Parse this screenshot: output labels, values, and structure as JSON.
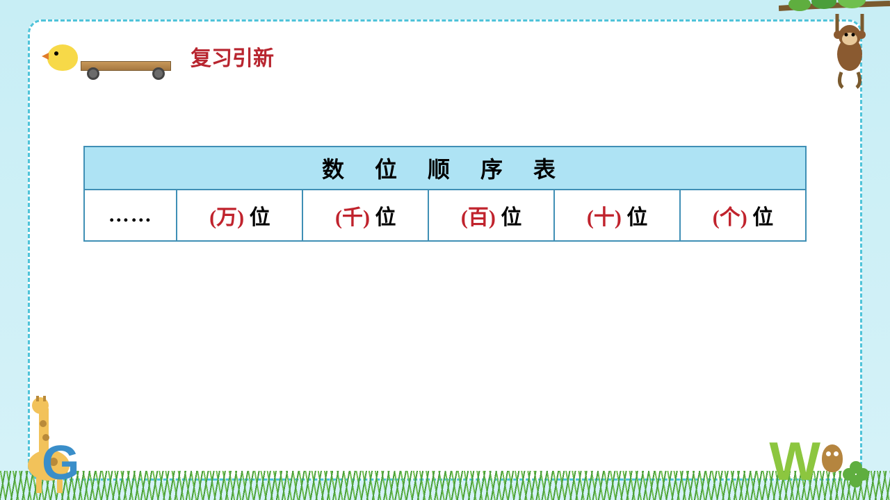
{
  "title": "复习引新",
  "table": {
    "header": "数 位 顺 序 表",
    "columns": [
      {
        "prefix": "",
        "red": "",
        "suffix": "……",
        "ellipsis": true
      },
      {
        "prefix": "(",
        "red": "万",
        "suffix": ") 位"
      },
      {
        "prefix": "(",
        "red": "千",
        "suffix": ") 位"
      },
      {
        "prefix": "(",
        "red": "百",
        "suffix": ") 位"
      },
      {
        "prefix": "(",
        "red": "十",
        "suffix": ") 位"
      },
      {
        "prefix": "(",
        "red": "个",
        "suffix": ") 位"
      }
    ],
    "border_color": "#3f8fb5",
    "header_bg": "#aee3f4",
    "header_fontsize": 32,
    "cell_fontsize": 30,
    "red_color": "#c0232d"
  },
  "frame": {
    "outer_bg": "#c8eef5",
    "inner_bg": "#ffffff",
    "dash_color": "#4fc3d9"
  },
  "decorations": {
    "top_left": "chick-on-cart",
    "top_right": "monkey-hanging-from-branch",
    "bottom_left": "giraffe-with-letter-G",
    "bottom_right": "owl-letter-W-clover",
    "bottom": "grass-strip"
  }
}
